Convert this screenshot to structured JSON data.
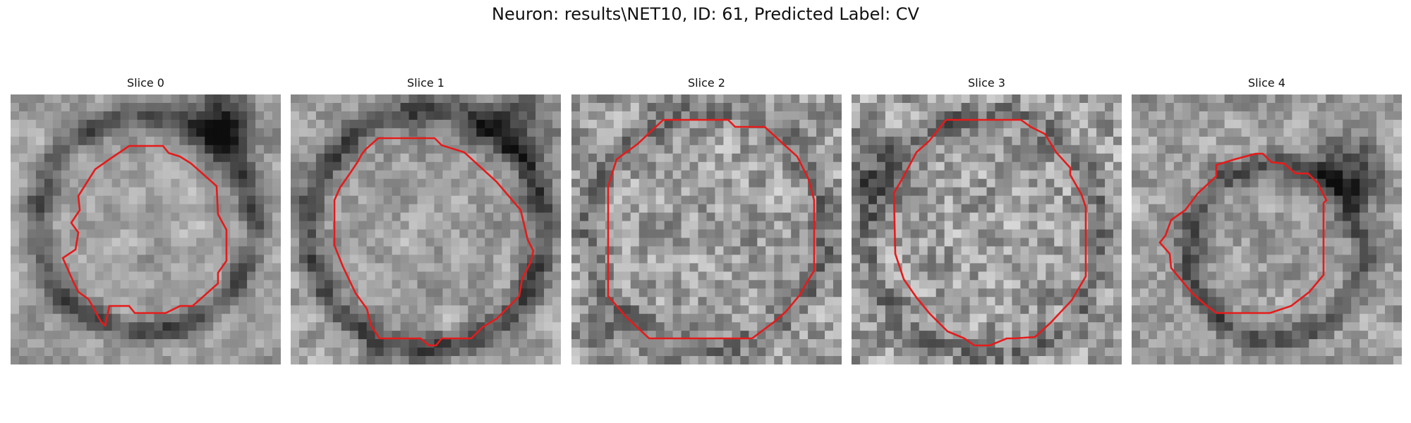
{
  "figure": {
    "title": "Neuron: results\\NET10, ID: 61, Predicted Label: CV"
  },
  "panels": [
    {
      "title": "Slice 0"
    },
    {
      "title": "Slice 1"
    },
    {
      "title": "Slice 2"
    },
    {
      "title": "Slice 3"
    },
    {
      "title": "Slice 4"
    }
  ],
  "colors": {
    "contour": "#e51b1b",
    "background": "#ffffff"
  }
}
